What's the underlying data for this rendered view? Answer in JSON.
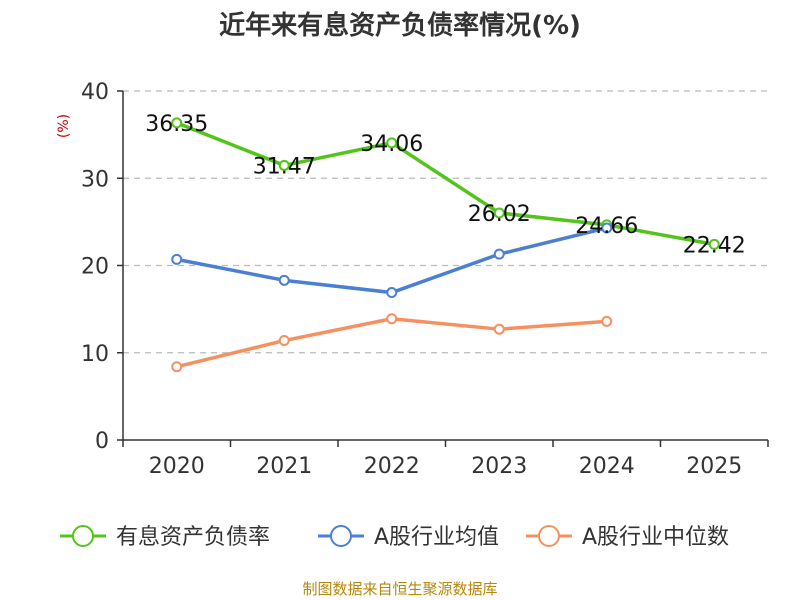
{
  "chart_data": {
    "type": "line",
    "title": "近年来有息资产负债率情况(%)",
    "unit_label": "(%)",
    "categories": [
      "2020",
      "2021",
      "2022",
      "2023",
      "2024",
      "2025"
    ],
    "ylim": [
      0,
      40
    ],
    "yticks": [
      0,
      10,
      20,
      30,
      40
    ],
    "grid": true,
    "legend_position": "bottom",
    "series": [
      {
        "name": "有息资产负债率",
        "color": "#52c41a",
        "values": [
          36.35,
          31.47,
          34.06,
          26.02,
          24.66,
          22.42
        ],
        "labels": [
          "36.35",
          "31.47",
          "34.06",
          "26.02",
          "24.66",
          "22.42"
        ],
        "show_labels": true
      },
      {
        "name": "A股行业均值",
        "color": "#4a7fd4",
        "values": [
          20.7,
          18.3,
          16.9,
          21.3,
          24.3,
          null
        ],
        "show_labels": false
      },
      {
        "name": "A股行业中位数",
        "color": "#f79060",
        "values": [
          8.4,
          11.4,
          13.9,
          12.7,
          13.6,
          null
        ],
        "show_labels": false
      }
    ],
    "source": "制图数据来自恒生聚源数据库"
  }
}
